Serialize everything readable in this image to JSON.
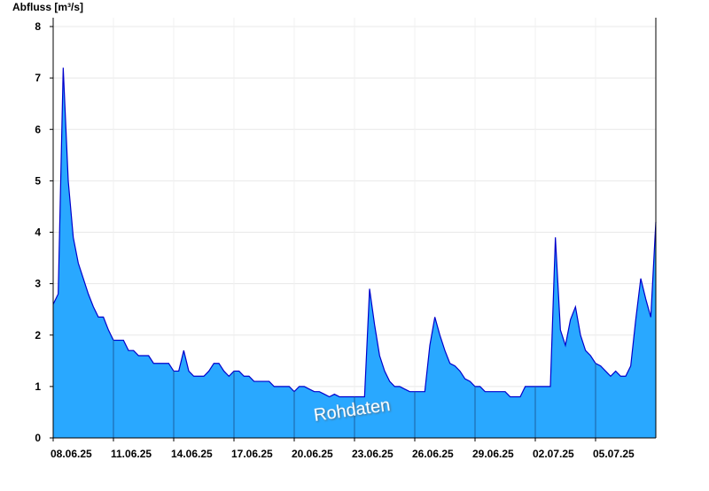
{
  "chart_data": {
    "type": "area",
    "title": "Abfluss [m³/s]",
    "annotation": "Rohdaten",
    "color": "#29a8ff",
    "line_color": "#0000cc",
    "grid": true,
    "xlim": [
      "2025-06-08T00:00",
      "2025-07-08T00:00"
    ],
    "xticks": [
      {
        "value": "2025-06-08T00:00",
        "label": "08.06.25"
      },
      {
        "value": "2025-06-11T00:00",
        "label": "11.06.25"
      },
      {
        "value": "2025-06-14T00:00",
        "label": "14.06.25"
      },
      {
        "value": "2025-06-17T00:00",
        "label": "17.06.25"
      },
      {
        "value": "2025-06-20T00:00",
        "label": "20.06.25"
      },
      {
        "value": "2025-06-23T00:00",
        "label": "23.06.25"
      },
      {
        "value": "2025-06-26T00:00",
        "label": "26.06.25"
      },
      {
        "value": "2025-06-29T00:00",
        "label": "29.06.25"
      },
      {
        "value": "2025-07-02T00:00",
        "label": "02.07.25"
      },
      {
        "value": "2025-07-05T00:00",
        "label": "05.07.25"
      }
    ],
    "ylim": [
      0,
      8
    ],
    "yticks": [
      0,
      1,
      2,
      3,
      4,
      5,
      6,
      7,
      8
    ],
    "x": [
      "2025-06-08T00:00",
      "2025-06-08T06:00",
      "2025-06-08T12:00",
      "2025-06-08T18:00",
      "2025-06-09T00:00",
      "2025-06-09T06:00",
      "2025-06-09T12:00",
      "2025-06-09T18:00",
      "2025-06-10T00:00",
      "2025-06-10T06:00",
      "2025-06-10T12:00",
      "2025-06-10T18:00",
      "2025-06-11T00:00",
      "2025-06-11T06:00",
      "2025-06-11T12:00",
      "2025-06-11T18:00",
      "2025-06-12T00:00",
      "2025-06-12T06:00",
      "2025-06-12T12:00",
      "2025-06-12T18:00",
      "2025-06-13T00:00",
      "2025-06-13T06:00",
      "2025-06-13T12:00",
      "2025-06-13T18:00",
      "2025-06-14T00:00",
      "2025-06-14T06:00",
      "2025-06-14T12:00",
      "2025-06-14T18:00",
      "2025-06-15T00:00",
      "2025-06-15T06:00",
      "2025-06-15T12:00",
      "2025-06-15T18:00",
      "2025-06-16T00:00",
      "2025-06-16T06:00",
      "2025-06-16T12:00",
      "2025-06-16T18:00",
      "2025-06-17T00:00",
      "2025-06-17T06:00",
      "2025-06-17T12:00",
      "2025-06-17T18:00",
      "2025-06-18T00:00",
      "2025-06-18T06:00",
      "2025-06-18T12:00",
      "2025-06-18T18:00",
      "2025-06-19T00:00",
      "2025-06-19T06:00",
      "2025-06-19T12:00",
      "2025-06-19T18:00",
      "2025-06-20T00:00",
      "2025-06-20T06:00",
      "2025-06-20T12:00",
      "2025-06-20T18:00",
      "2025-06-21T00:00",
      "2025-06-21T06:00",
      "2025-06-21T12:00",
      "2025-06-21T18:00",
      "2025-06-22T00:00",
      "2025-06-22T06:00",
      "2025-06-22T12:00",
      "2025-06-22T18:00",
      "2025-06-23T00:00",
      "2025-06-23T06:00",
      "2025-06-23T12:00",
      "2025-06-23T18:00",
      "2025-06-24T00:00",
      "2025-06-24T06:00",
      "2025-06-24T12:00",
      "2025-06-24T18:00",
      "2025-06-25T00:00",
      "2025-06-25T06:00",
      "2025-06-25T12:00",
      "2025-06-25T18:00",
      "2025-06-26T00:00",
      "2025-06-26T06:00",
      "2025-06-26T12:00",
      "2025-06-26T18:00",
      "2025-06-27T00:00",
      "2025-06-27T06:00",
      "2025-06-27T12:00",
      "2025-06-27T18:00",
      "2025-06-28T00:00",
      "2025-06-28T06:00",
      "2025-06-28T12:00",
      "2025-06-28T18:00",
      "2025-06-29T00:00",
      "2025-06-29T06:00",
      "2025-06-29T12:00",
      "2025-06-29T18:00",
      "2025-06-30T00:00",
      "2025-06-30T06:00",
      "2025-06-30T12:00",
      "2025-06-30T18:00",
      "2025-07-01T00:00",
      "2025-07-01T06:00",
      "2025-07-01T12:00",
      "2025-07-01T18:00",
      "2025-07-02T00:00",
      "2025-07-02T06:00",
      "2025-07-02T12:00",
      "2025-07-02T18:00",
      "2025-07-03T00:00",
      "2025-07-03T06:00",
      "2025-07-03T12:00",
      "2025-07-03T18:00",
      "2025-07-04T00:00",
      "2025-07-04T06:00",
      "2025-07-04T12:00",
      "2025-07-04T18:00",
      "2025-07-05T00:00",
      "2025-07-05T06:00",
      "2025-07-05T12:00",
      "2025-07-05T18:00",
      "2025-07-06T00:00",
      "2025-07-06T06:00",
      "2025-07-06T12:00",
      "2025-07-06T18:00",
      "2025-07-07T00:00",
      "2025-07-07T06:00",
      "2025-07-07T12:00",
      "2025-07-07T18:00",
      "2025-07-08T00:00"
    ],
    "values": [
      2.6,
      2.8,
      7.2,
      5.0,
      3.9,
      3.4,
      3.1,
      2.8,
      2.55,
      2.35,
      2.35,
      2.1,
      1.9,
      1.9,
      1.9,
      1.7,
      1.7,
      1.6,
      1.6,
      1.6,
      1.45,
      1.45,
      1.45,
      1.45,
      1.3,
      1.3,
      1.7,
      1.3,
      1.2,
      1.2,
      1.2,
      1.3,
      1.45,
      1.45,
      1.3,
      1.2,
      1.3,
      1.3,
      1.2,
      1.2,
      1.1,
      1.1,
      1.1,
      1.1,
      1.0,
      1.0,
      1.0,
      1.0,
      0.9,
      1.0,
      1.0,
      0.95,
      0.9,
      0.9,
      0.85,
      0.8,
      0.85,
      0.8,
      0.8,
      0.8,
      0.8,
      0.8,
      0.8,
      2.9,
      2.2,
      1.6,
      1.3,
      1.1,
      1.0,
      1.0,
      0.95,
      0.9,
      0.9,
      0.9,
      0.9,
      1.8,
      2.35,
      2.0,
      1.7,
      1.45,
      1.4,
      1.3,
      1.15,
      1.1,
      1.0,
      1.0,
      0.9,
      0.9,
      0.9,
      0.9,
      0.9,
      0.8,
      0.8,
      0.8,
      1.0,
      1.0,
      1.0,
      1.0,
      1.0,
      1.0,
      3.9,
      2.1,
      1.8,
      2.3,
      2.55,
      2.0,
      1.7,
      1.6,
      1.45,
      1.4,
      1.3,
      1.2,
      1.3,
      1.2,
      1.2,
      1.4,
      2.3,
      3.1,
      2.7,
      2.35,
      4.2
    ]
  }
}
